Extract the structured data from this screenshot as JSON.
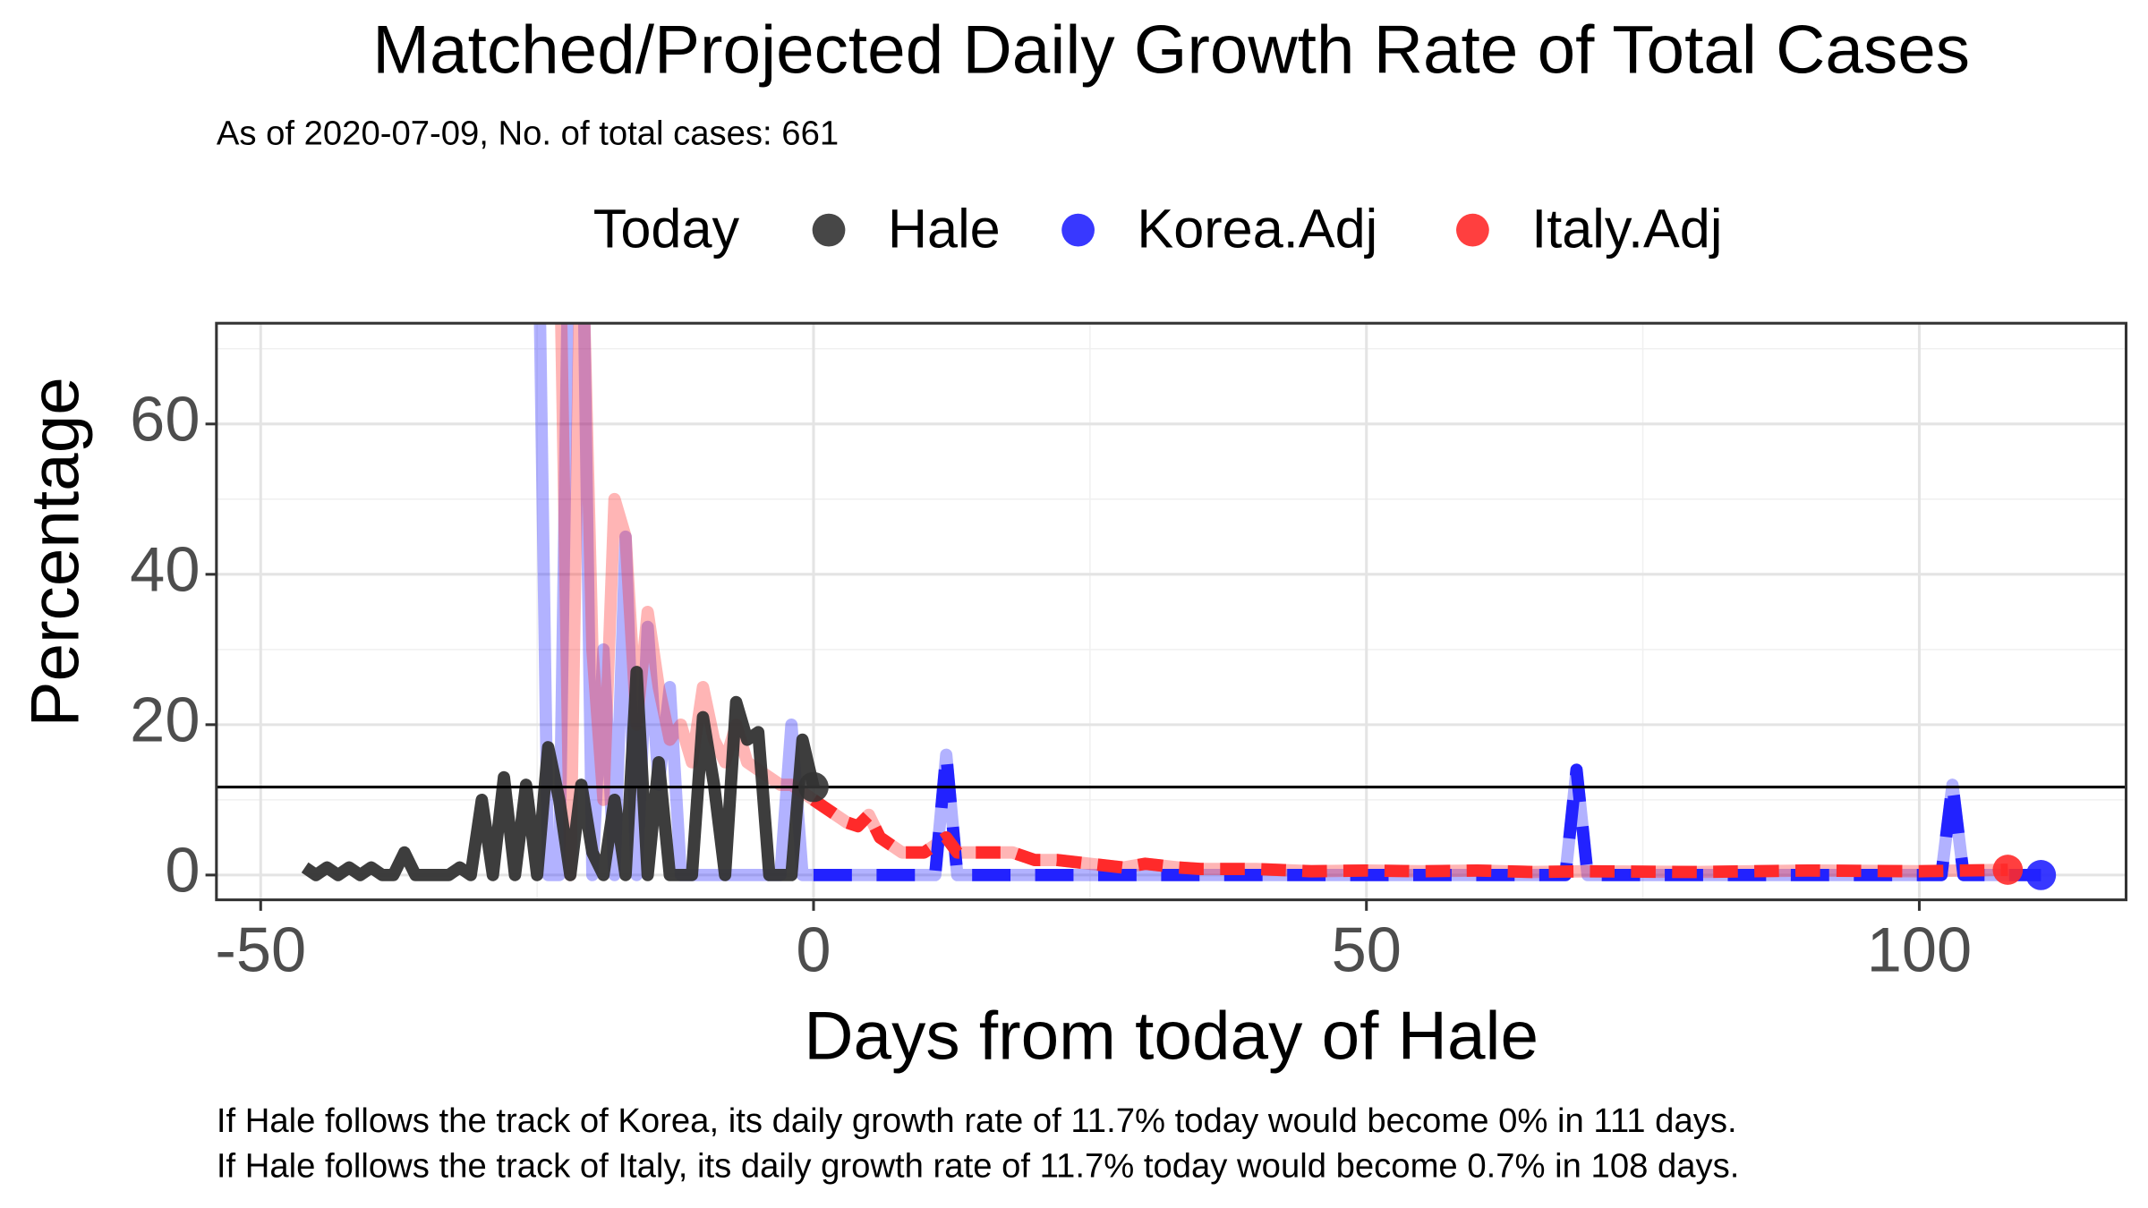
{
  "chart_data": {
    "type": "line",
    "title": "Matched/Projected Daily Growth Rate of Total Cases",
    "subtitle": "As of 2020-07-09, No. of total cases: 661",
    "legend_title": "Today",
    "xlabel": "Days from today of Hale",
    "ylabel": "Percentage",
    "captions": [
      "If Hale follows the track of Korea, its daily growth rate of 11.7% today would become 0% in 111 days.",
      "If Hale follows the track of Italy, its daily growth rate of 11.7% today would become 0.7% in 108 days."
    ],
    "xlim": [
      -54,
      118.7
    ],
    "ylim": [
      -3.3,
      73.4
    ],
    "xticks": [
      -50,
      0,
      50,
      100
    ],
    "yticks": [
      0,
      20,
      40,
      60
    ],
    "xticks_minor": [
      -25,
      25,
      75
    ],
    "yticks_minor": [
      10,
      30,
      50,
      70
    ],
    "grid": true,
    "legend_position": "top",
    "series": [
      {
        "name": "Hale",
        "color": "#333333",
        "linetype": "solid",
        "projected": false,
        "x": [
          -46,
          -45,
          -44,
          -43,
          -42,
          -41,
          -40,
          -39,
          -38,
          -37,
          -36,
          -35,
          -34,
          -33,
          -32,
          -31,
          -30,
          -29,
          -28,
          -27,
          -26,
          -25,
          -24,
          -23,
          -22,
          -21,
          -20,
          -19,
          -18,
          -17,
          -16,
          -15,
          -14,
          -13,
          -12,
          -11,
          -10,
          -9,
          -8,
          -7,
          -6,
          -5,
          -4,
          -3,
          -2,
          -1,
          0
        ],
        "values": [
          1,
          0,
          1,
          0,
          1,
          0,
          1,
          0,
          0,
          3,
          0,
          0,
          0,
          0,
          1,
          0,
          10,
          0,
          13,
          0,
          12,
          0,
          17,
          10,
          0,
          12,
          3,
          0,
          10,
          0,
          27,
          0,
          15,
          0,
          0,
          0,
          21,
          12,
          0,
          23,
          18,
          19,
          0,
          0,
          0,
          18,
          11.7
        ]
      },
      {
        "name": "Korea.Adj",
        "color": "#2222ff",
        "linetype": "longdash",
        "projected": true,
        "x": [
          -25,
          -24,
          -23,
          -22,
          -21,
          -20,
          -19,
          -18,
          -17,
          -16,
          -15,
          -14,
          -13,
          -12,
          -11,
          -10,
          -9,
          -8,
          -7,
          -6,
          -5,
          -4,
          -3,
          -2,
          -1,
          0,
          11,
          12,
          13,
          68,
          69,
          70,
          102,
          103,
          104,
          111
        ],
        "values": [
          100,
          0,
          0,
          100,
          100,
          0,
          30,
          0,
          45,
          0,
          33,
          12,
          25,
          0,
          0,
          0,
          0,
          0,
          0,
          0,
          0,
          0,
          0,
          20,
          0,
          0,
          0,
          16,
          0,
          0,
          14,
          0,
          0,
          12,
          0,
          0
        ]
      },
      {
        "name": "Italy.Adj",
        "color": "#ff2a2a",
        "linetype": "dashed",
        "projected": true,
        "x": [
          -23,
          -22,
          -21,
          -20,
          -19,
          -18,
          -17,
          -16,
          -15,
          -14,
          -13,
          -12,
          -11,
          -10,
          -9,
          -8,
          -7,
          -6,
          -5,
          -4,
          -3,
          -2,
          -1,
          0,
          1,
          2,
          3,
          4,
          5,
          6,
          7,
          8,
          10,
          11,
          12,
          13,
          15,
          18,
          20,
          22,
          25,
          28,
          30,
          33,
          35,
          40,
          45,
          50,
          55,
          60,
          65,
          70,
          80,
          90,
          100,
          108
        ],
        "values": [
          90,
          0,
          90,
          30,
          10,
          50,
          45,
          20,
          35,
          25,
          18,
          20,
          15,
          25,
          18,
          15,
          20,
          15,
          14,
          13,
          12,
          12,
          11,
          10,
          9,
          8,
          7,
          6.5,
          8,
          5,
          4,
          3,
          3,
          4,
          5,
          3,
          3,
          3,
          2,
          2,
          1.5,
          1,
          1.5,
          1,
          0.8,
          0.8,
          0.5,
          0.6,
          0.5,
          0.6,
          0.4,
          0.5,
          0.4,
          0.6,
          0.5,
          0.7
        ]
      }
    ]
  }
}
